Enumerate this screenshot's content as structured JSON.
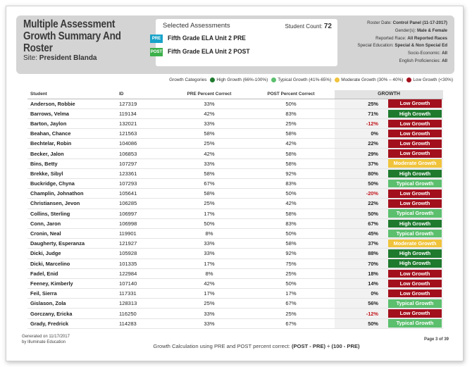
{
  "header": {
    "title": "Multiple Assessment Growth Summary And Roster",
    "site_label": "Site:",
    "site_value": "President Blanda"
  },
  "assessments": {
    "heading": "Selected Assessments",
    "count_label": "Student Count:",
    "count_value": "72",
    "pre_badge": "PRE",
    "pre_name": "Fifth Grade ELA Unit 2 PRE",
    "post_badge": "POST",
    "post_name": "Fifth Grade ELA Unit 2 POST"
  },
  "filters": [
    {
      "label": "Roster Date:",
      "value": "Control Panel (11-17-2017)"
    },
    {
      "label": "Gender(s):",
      "value": "Male & Female"
    },
    {
      "label": "Reported Race:",
      "value": "All Reported Races"
    },
    {
      "label": "Special Education:",
      "value": "Special & Non Special Ed"
    },
    {
      "label": "Socio-Economic:",
      "value": "All"
    },
    {
      "label": "English Proficiencies:",
      "value": "All"
    }
  ],
  "legend": {
    "title": "Growth Categories",
    "items": [
      {
        "label": "High Growth (66%-100%)",
        "color": "#1f7a2e"
      },
      {
        "label": "Typical Growth (41%-65%)",
        "color": "#5cbf6e"
      },
      {
        "label": "Moderate Growth (30% – 40%)",
        "color": "#f0c33c"
      },
      {
        "label": "Low Growth (<30%)",
        "color": "#a3101d"
      }
    ]
  },
  "colors": {
    "high": "#1f7a2e",
    "typical": "#5cbf6e",
    "moderate": "#f0c33c",
    "low": "#a3101d"
  },
  "table": {
    "columns": [
      "Student",
      "ID",
      "PRE Percent Correct",
      "POST Percent Correct",
      "GROWTH"
    ],
    "rows": [
      {
        "student": "Anderson, Robbie",
        "id": "127319",
        "pre": "33%",
        "post": "50%",
        "growth": "25%",
        "category": "Low Growth",
        "level": "low"
      },
      {
        "student": "Barrows, Velma",
        "id": "119134",
        "pre": "42%",
        "post": "83%",
        "growth": "71%",
        "category": "High Growth",
        "level": "high"
      },
      {
        "student": "Barton, Jaylon",
        "id": "132021",
        "pre": "33%",
        "post": "25%",
        "growth": "-12%",
        "category": "Low Growth",
        "level": "low"
      },
      {
        "student": "Beahan, Chance",
        "id": "121563",
        "pre": "58%",
        "post": "58%",
        "growth": "0%",
        "category": "Low Growth",
        "level": "low"
      },
      {
        "student": "Bechtelar, Robin",
        "id": "104086",
        "pre": "25%",
        "post": "42%",
        "growth": "22%",
        "category": "Low Growth",
        "level": "low"
      },
      {
        "student": "Becker, Jalon",
        "id": "106853",
        "pre": "42%",
        "post": "58%",
        "growth": "29%",
        "category": "Low Growth",
        "level": "low"
      },
      {
        "student": "Bins, Betty",
        "id": "107297",
        "pre": "33%",
        "post": "58%",
        "growth": "37%",
        "category": "Moderate Growth",
        "level": "moderate"
      },
      {
        "student": "Brekke, Sibyl",
        "id": "123361",
        "pre": "58%",
        "post": "92%",
        "growth": "80%",
        "category": "High Growth",
        "level": "high"
      },
      {
        "student": "Buckridge, Chyna",
        "id": "107293",
        "pre": "67%",
        "post": "83%",
        "growth": "50%",
        "category": "Typical Growth",
        "level": "typical"
      },
      {
        "student": "Champlin, Johnathon",
        "id": "105641",
        "pre": "58%",
        "post": "50%",
        "growth": "-20%",
        "category": "Low Growth",
        "level": "low"
      },
      {
        "student": "Christiansen, Jevon",
        "id": "106285",
        "pre": "25%",
        "post": "42%",
        "growth": "22%",
        "category": "Low Growth",
        "level": "low"
      },
      {
        "student": "Collins, Sterling",
        "id": "106997",
        "pre": "17%",
        "post": "58%",
        "growth": "50%",
        "category": "Typical Growth",
        "level": "typical"
      },
      {
        "student": "Conn, Jaron",
        "id": "106998",
        "pre": "50%",
        "post": "83%",
        "growth": "67%",
        "category": "High Growth",
        "level": "high"
      },
      {
        "student": "Cronin, Neal",
        "id": "119901",
        "pre": "8%",
        "post": "50%",
        "growth": "45%",
        "category": "Typical Growth",
        "level": "typical"
      },
      {
        "student": "Daugherty, Esperanza",
        "id": "121927",
        "pre": "33%",
        "post": "58%",
        "growth": "37%",
        "category": "Moderate Growth",
        "level": "moderate"
      },
      {
        "student": "Dicki, Judge",
        "id": "105928",
        "pre": "33%",
        "post": "92%",
        "growth": "88%",
        "category": "High Growth",
        "level": "high"
      },
      {
        "student": "Dicki, Marcelino",
        "id": "101335",
        "pre": "17%",
        "post": "75%",
        "growth": "70%",
        "category": "High Growth",
        "level": "high"
      },
      {
        "student": "Fadel, Enid",
        "id": "122984",
        "pre": "8%",
        "post": "25%",
        "growth": "18%",
        "category": "Low Growth",
        "level": "low"
      },
      {
        "student": "Feeney, Kimberly",
        "id": "107140",
        "pre": "42%",
        "post": "50%",
        "growth": "14%",
        "category": "Low Growth",
        "level": "low"
      },
      {
        "student": "Feil, Sierra",
        "id": "117331",
        "pre": "17%",
        "post": "17%",
        "growth": "0%",
        "category": "Low Growth",
        "level": "low"
      },
      {
        "student": "Gislason, Zola",
        "id": "128313",
        "pre": "25%",
        "post": "67%",
        "growth": "56%",
        "category": "Typical Growth",
        "level": "typical"
      },
      {
        "student": "Gorczany, Ericka",
        "id": "116250",
        "pre": "33%",
        "post": "25%",
        "growth": "-12%",
        "category": "Low Growth",
        "level": "low"
      },
      {
        "student": "Grady, Fredrick",
        "id": "114283",
        "pre": "33%",
        "post": "67%",
        "growth": "50%",
        "category": "Typical Growth",
        "level": "typical"
      }
    ]
  },
  "footer": {
    "generated": "Generated on 11/17/2017",
    "by": "by Illuminate Education",
    "calc_label": "Growth Calculation using PRE and POST percent correct:",
    "calc_formula": "(POST - PRE) ÷ (100 - PRE)",
    "page": "Page 3 of 39"
  }
}
